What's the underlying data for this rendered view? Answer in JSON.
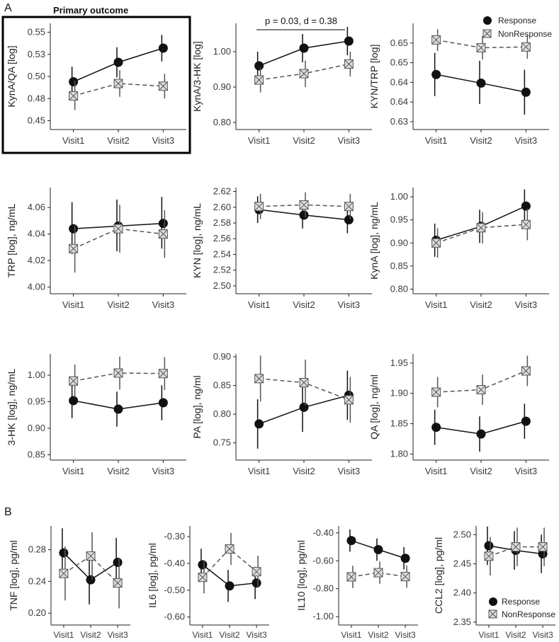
{
  "section_labels": {
    "a": "A",
    "b": "B"
  },
  "legend": {
    "response": "Response",
    "nonresponse": "NonResponse"
  },
  "highlight": {
    "title": "Primary outcome"
  },
  "annotation": {
    "text": "p = 0.03, d = 0.38"
  },
  "colors": {
    "response": "#111111",
    "nonresponse": "#555555",
    "marker_fill": "#dddddd",
    "axis": "#222222"
  },
  "chart_data": [
    {
      "id": "kynaqa",
      "type": "line",
      "ylabel": "KynA/QA [log]",
      "categories": [
        "Visit1",
        "Visit2",
        "Visit3"
      ],
      "ylim": [
        0.44,
        0.56
      ],
      "yticks": [
        0.45,
        0.475,
        0.5,
        0.525,
        0.55
      ],
      "ytick_labels": [
        "0.45",
        "0.48",
        "0.50",
        "0.53",
        "0.55"
      ],
      "series": [
        {
          "name": "Response",
          "values": [
            0.494,
            0.516,
            0.532
          ],
          "err_low": [
            0.476,
            0.499,
            0.517
          ],
          "err_high": [
            0.511,
            0.533,
            0.547
          ]
        },
        {
          "name": "NonResponse",
          "values": [
            0.478,
            0.492,
            0.489
          ],
          "err_low": [
            0.462,
            0.477,
            0.475
          ],
          "err_high": [
            0.495,
            0.507,
            0.503
          ]
        }
      ]
    },
    {
      "id": "kyna3hk",
      "type": "line",
      "ylabel": "KynA/3-HK [log]",
      "categories": [
        "Visit1",
        "Visit2",
        "Visit3"
      ],
      "ylim": [
        0.78,
        1.08
      ],
      "yticks": [
        0.8,
        0.9,
        1.0
      ],
      "ytick_labels": [
        "0.80",
        "0.90",
        "1.00"
      ],
      "series": [
        {
          "name": "Response",
          "values": [
            0.96,
            1.01,
            1.03
          ],
          "err_low": [
            0.92,
            0.97,
            0.99
          ],
          "err_high": [
            1.0,
            1.05,
            1.07
          ]
        },
        {
          "name": "NonResponse",
          "values": [
            0.92,
            0.938,
            0.965
          ],
          "err_low": [
            0.885,
            0.9,
            0.93
          ],
          "err_high": [
            0.955,
            0.975,
            1.0
          ]
        }
      ]
    },
    {
      "id": "kyntrp",
      "type": "line",
      "ylabel": "KYN/TRP [log]",
      "categories": [
        "Visit1",
        "Visit2",
        "Visit3"
      ],
      "ylim": [
        0.628,
        0.655
      ],
      "yticks": [
        0.63,
        0.635,
        0.64,
        0.645,
        0.65
      ],
      "ytick_labels": [
        "0.63",
        "0.64",
        "0.64",
        "0.65",
        "0.65"
      ],
      "series": [
        {
          "name": "Response",
          "values": [
            0.642,
            0.6398,
            0.6375
          ],
          "err_low": [
            0.6365,
            0.6345,
            0.6318
          ],
          "err_high": [
            0.6475,
            0.6455,
            0.6432
          ]
        },
        {
          "name": "NonResponse",
          "values": [
            0.6508,
            0.6488,
            0.649
          ],
          "err_low": [
            0.648,
            0.6458,
            0.646
          ],
          "err_high": [
            0.6535,
            0.6518,
            0.652
          ]
        }
      ]
    },
    {
      "id": "trp",
      "type": "line",
      "ylabel": "TRP [log], ng/mL",
      "categories": [
        "Visit1",
        "Visit2",
        "Visit3"
      ],
      "ylim": [
        3.995,
        4.075
      ],
      "yticks": [
        4.0,
        4.02,
        4.04,
        4.06
      ],
      "ytick_labels": [
        "4.00",
        "4.02",
        "4.04",
        "4.06"
      ],
      "series": [
        {
          "name": "Response",
          "values": [
            4.044,
            4.046,
            4.048
          ],
          "err_low": [
            4.025,
            4.027,
            4.029
          ],
          "err_high": [
            4.064,
            4.066,
            4.068
          ]
        },
        {
          "name": "NonResponse",
          "values": [
            4.029,
            4.044,
            4.04
          ],
          "err_low": [
            4.011,
            4.026,
            4.022
          ],
          "err_high": [
            4.047,
            4.062,
            4.058
          ]
        }
      ]
    },
    {
      "id": "kyn",
      "type": "line",
      "ylabel": "KYN [log], ng/mL",
      "categories": [
        "Visit1",
        "Visit2",
        "Visit3"
      ],
      "ylim": [
        2.49,
        2.625
      ],
      "yticks": [
        2.5,
        2.52,
        2.54,
        2.56,
        2.58,
        2.6,
        2.62
      ],
      "ytick_labels": [
        "2.50",
        "2.52",
        "2.54",
        "2.56",
        "2.58",
        "2.60",
        "2.62"
      ],
      "series": [
        {
          "name": "Response",
          "values": [
            2.597,
            2.59,
            2.584
          ],
          "err_low": [
            2.58,
            2.573,
            2.567
          ],
          "err_high": [
            2.614,
            2.607,
            2.601
          ]
        },
        {
          "name": "NonResponse",
          "values": [
            2.601,
            2.603,
            2.601
          ],
          "err_low": [
            2.585,
            2.587,
            2.585
          ],
          "err_high": [
            2.617,
            2.619,
            2.617
          ]
        }
      ]
    },
    {
      "id": "kyna",
      "type": "line",
      "ylabel": "KynA [log], ng/mL",
      "categories": [
        "Visit1",
        "Visit2",
        "Visit3"
      ],
      "ylim": [
        0.79,
        1.02
      ],
      "yticks": [
        0.8,
        0.85,
        0.9,
        0.95,
        1.0
      ],
      "ytick_labels": [
        "0.80",
        "0.85",
        "0.90",
        "0.95",
        "1.00"
      ],
      "series": [
        {
          "name": "Response",
          "values": [
            0.906,
            0.936,
            0.98
          ],
          "err_low": [
            0.87,
            0.9,
            0.944
          ],
          "err_high": [
            0.942,
            0.972,
            1.016
          ]
        },
        {
          "name": "NonResponse",
          "values": [
            0.9,
            0.933,
            0.94
          ],
          "err_low": [
            0.868,
            0.899,
            0.906
          ],
          "err_high": [
            0.932,
            0.967,
            0.974
          ]
        }
      ]
    },
    {
      "id": "3hk",
      "type": "line",
      "ylabel": "3-HK [log], ng/mL",
      "categories": [
        "Visit1",
        "Visit2",
        "Visit3"
      ],
      "ylim": [
        0.84,
        1.04
      ],
      "yticks": [
        0.85,
        0.9,
        0.95,
        1.0
      ],
      "ytick_labels": [
        "0.85",
        "0.90",
        "0.95",
        "1.00"
      ],
      "series": [
        {
          "name": "Response",
          "values": [
            0.952,
            0.936,
            0.948
          ],
          "err_low": [
            0.919,
            0.903,
            0.915
          ],
          "err_high": [
            0.985,
            0.969,
            0.981
          ]
        },
        {
          "name": "NonResponse",
          "values": [
            0.989,
            1.004,
            1.003
          ],
          "err_low": [
            0.958,
            0.973,
            0.972
          ],
          "err_high": [
            1.02,
            1.035,
            1.034
          ]
        }
      ]
    },
    {
      "id": "pa",
      "type": "line",
      "ylabel": "PA [log], ng/ml",
      "categories": [
        "Visit1",
        "Visit2",
        "Visit3"
      ],
      "ylim": [
        0.72,
        0.905
      ],
      "yticks": [
        0.75,
        0.8,
        0.85,
        0.9
      ],
      "ytick_labels": [
        "0.75",
        "0.80",
        "0.85",
        "0.90"
      ],
      "series": [
        {
          "name": "Response",
          "values": [
            0.783,
            0.812,
            0.833
          ],
          "err_low": [
            0.74,
            0.769,
            0.79
          ],
          "err_high": [
            0.826,
            0.855,
            0.876
          ]
        },
        {
          "name": "NonResponse",
          "values": [
            0.862,
            0.855,
            0.825
          ],
          "err_low": [
            0.822,
            0.815,
            0.785
          ],
          "err_high": [
            0.902,
            0.895,
            0.865
          ]
        }
      ]
    },
    {
      "id": "qa",
      "type": "line",
      "ylabel": "QA [log], ng/ml",
      "categories": [
        "Visit1",
        "Visit2",
        "Visit3"
      ],
      "ylim": [
        1.79,
        1.965
      ],
      "yticks": [
        1.8,
        1.85,
        1.9,
        1.95
      ],
      "ytick_labels": [
        "1.80",
        "1.85",
        "1.90",
        "1.95"
      ],
      "series": [
        {
          "name": "Response",
          "values": [
            1.844,
            1.833,
            1.854
          ],
          "err_low": [
            1.815,
            1.804,
            1.825
          ],
          "err_high": [
            1.873,
            1.862,
            1.883
          ]
        },
        {
          "name": "NonResponse",
          "values": [
            1.902,
            1.906,
            1.937
          ],
          "err_low": [
            1.877,
            1.881,
            1.912
          ],
          "err_high": [
            1.927,
            1.931,
            1.962
          ]
        }
      ]
    },
    {
      "id": "tnf",
      "type": "line",
      "ylabel": "TNF [log], pg/ml",
      "categories": [
        "Visit1",
        "Visit2",
        "Visit3"
      ],
      "ylim": [
        0.185,
        0.31
      ],
      "yticks": [
        0.2,
        0.24,
        0.28
      ],
      "ytick_labels": [
        "0.20",
        "0.24",
        "0.28"
      ],
      "series": [
        {
          "name": "Response",
          "values": [
            0.276,
            0.242,
            0.264
          ],
          "err_low": [
            0.245,
            0.211,
            0.233
          ],
          "err_high": [
            0.307,
            0.273,
            0.295
          ]
        },
        {
          "name": "NonResponse",
          "values": [
            0.25,
            0.272,
            0.238
          ],
          "err_low": [
            0.216,
            0.242,
            0.206
          ],
          "err_high": [
            0.284,
            0.302,
            0.27
          ]
        }
      ]
    },
    {
      "id": "il6",
      "type": "line",
      "ylabel": "IL6 [log], pg/ml",
      "categories": [
        "Visit1",
        "Visit2",
        "Visit3"
      ],
      "ylim": [
        -0.63,
        -0.26
      ],
      "yticks": [
        -0.6,
        -0.5,
        -0.4,
        -0.3
      ],
      "ytick_labels": [
        "-0.60",
        "-0.50",
        "-0.40",
        "-0.30"
      ],
      "series": [
        {
          "name": "Response",
          "values": [
            -0.405,
            -0.484,
            -0.473
          ],
          "err_low": [
            -0.465,
            -0.544,
            -0.533
          ],
          "err_high": [
            -0.345,
            -0.424,
            -0.413
          ]
        },
        {
          "name": "NonResponse",
          "values": [
            -0.452,
            -0.346,
            -0.431
          ],
          "err_low": [
            -0.512,
            -0.406,
            -0.491
          ],
          "err_high": [
            -0.392,
            -0.286,
            -0.371
          ]
        }
      ]
    },
    {
      "id": "il10",
      "type": "line",
      "ylabel": "IL10 [log], pg/ml",
      "categories": [
        "Visit1",
        "Visit2",
        "Visit3"
      ],
      "ylim": [
        -1.06,
        -0.35
      ],
      "yticks": [
        -1.0,
        -0.8,
        -0.6,
        -0.4
      ],
      "ytick_labels": [
        "-1.00",
        "-0.80",
        "-0.60",
        "-0.40"
      ],
      "series": [
        {
          "name": "Response",
          "values": [
            -0.455,
            -0.52,
            -0.582
          ],
          "err_low": [
            -0.535,
            -0.6,
            -0.662
          ],
          "err_high": [
            -0.375,
            -0.44,
            -0.502
          ]
        },
        {
          "name": "NonResponse",
          "values": [
            -0.715,
            -0.685,
            -0.713
          ],
          "err_low": [
            -0.795,
            -0.765,
            -0.793
          ],
          "err_high": [
            -0.635,
            -0.605,
            -0.633
          ]
        }
      ]
    },
    {
      "id": "ccl2",
      "type": "line",
      "ylabel": "CCL2 [log], pg/ml",
      "categories": [
        "Visit1",
        "Visit2",
        "Visit3"
      ],
      "ylim": [
        2.345,
        2.515
      ],
      "yticks": [
        2.35,
        2.4,
        2.45,
        2.5
      ],
      "ytick_labels": [
        "2.35",
        "2.40",
        "2.45",
        "2.50"
      ],
      "series": [
        {
          "name": "Response",
          "values": [
            2.481,
            2.473,
            2.467
          ],
          "err_low": [
            2.448,
            2.44,
            2.434
          ],
          "err_high": [
            2.514,
            2.506,
            2.5
          ]
        },
        {
          "name": "NonResponse",
          "values": [
            2.463,
            2.479,
            2.479
          ],
          "err_low": [
            2.43,
            2.446,
            2.446
          ],
          "err_high": [
            2.496,
            2.512,
            2.512
          ]
        }
      ]
    }
  ]
}
